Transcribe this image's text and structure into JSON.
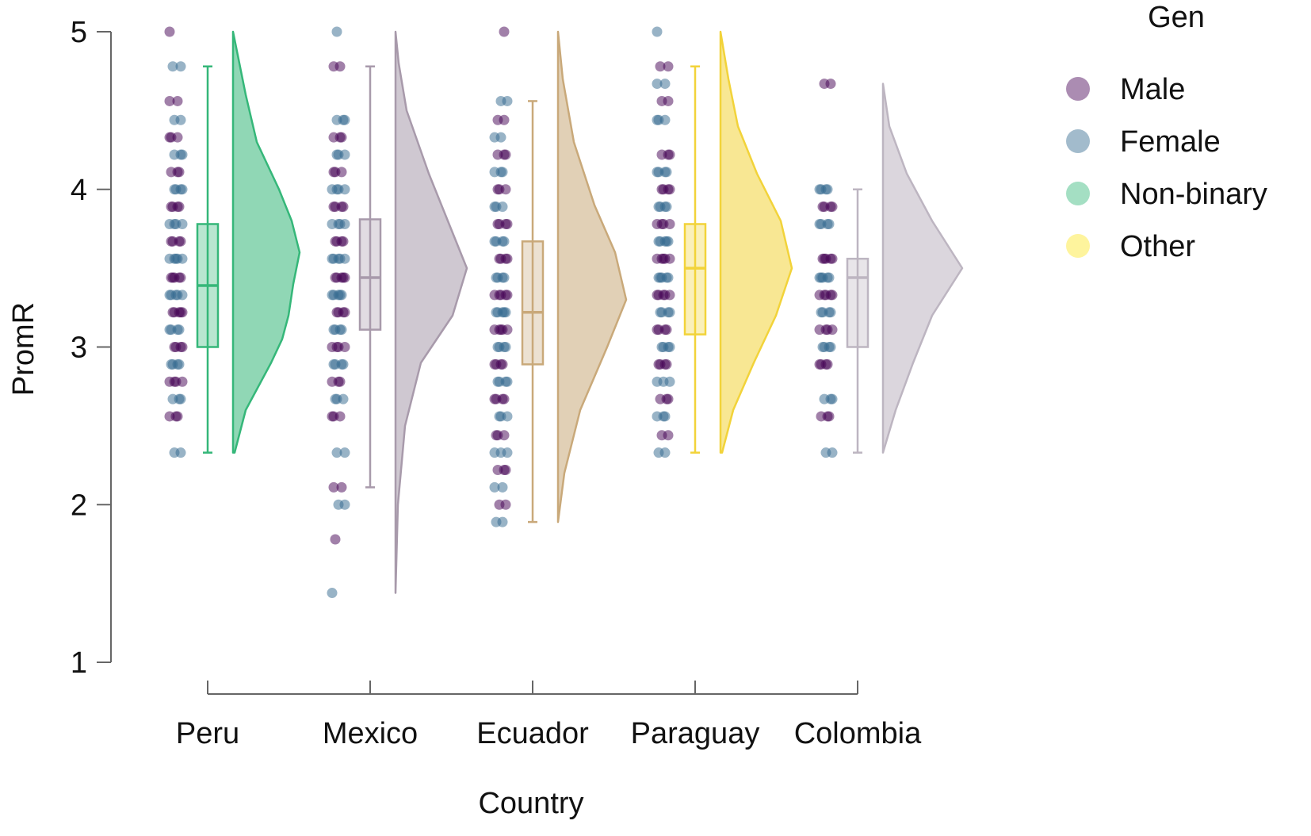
{
  "chart_data": {
    "type": "raincloud",
    "xlabel": "Country",
    "ylabel": "PromR",
    "ylim": [
      1,
      5
    ],
    "yticks": [
      1,
      2,
      3,
      4,
      5
    ],
    "grid": false,
    "legend": {
      "title": "Gen",
      "placement": "top-right",
      "entries": [
        {
          "name": "Male",
          "color": "#440154"
        },
        {
          "name": "Female",
          "color": "#31688e"
        },
        {
          "name": "Non-binary",
          "color": "#35b779"
        },
        {
          "name": "Other",
          "color": "#fde725"
        }
      ]
    },
    "groups": [
      {
        "name": "Peru",
        "color": "#35b779",
        "box": {
          "min": 2.33,
          "q1": 3.0,
          "median": 3.39,
          "q3": 3.78,
          "max": 4.78
        },
        "density": [
          [
            2.33,
            0.02
          ],
          [
            2.6,
            0.16
          ],
          [
            2.9,
            0.48
          ],
          [
            3.05,
            0.62
          ],
          [
            3.2,
            0.7
          ],
          [
            3.4,
            0.76
          ],
          [
            3.6,
            0.84
          ],
          [
            3.8,
            0.74
          ],
          [
            4.0,
            0.58
          ],
          [
            4.3,
            0.3
          ],
          [
            4.6,
            0.16
          ],
          [
            5.0,
            0.0
          ]
        ],
        "points": [
          5.0,
          4.78,
          4.56,
          4.44,
          4.33,
          4.22,
          4.11,
          4.0,
          3.89,
          3.78,
          3.67,
          3.56,
          3.44,
          3.33,
          3.22,
          3.11,
          3.0,
          2.89,
          2.78,
          2.67,
          2.56,
          2.33
        ]
      },
      {
        "name": "Mexico",
        "color": "#a89aab",
        "box": {
          "min": 2.11,
          "q1": 3.11,
          "median": 3.44,
          "q3": 3.81,
          "max": 4.78
        },
        "density": [
          [
            1.44,
            0.0
          ],
          [
            2.0,
            0.03
          ],
          [
            2.5,
            0.12
          ],
          [
            2.9,
            0.32
          ],
          [
            3.2,
            0.72
          ],
          [
            3.5,
            0.9
          ],
          [
            3.8,
            0.66
          ],
          [
            4.1,
            0.42
          ],
          [
            4.5,
            0.14
          ],
          [
            4.8,
            0.04
          ],
          [
            5.0,
            0.0
          ]
        ],
        "points": [
          5.0,
          4.78,
          4.44,
          4.33,
          4.22,
          4.11,
          4.0,
          3.89,
          3.78,
          3.67,
          3.56,
          3.44,
          3.33,
          3.22,
          3.11,
          3.0,
          2.89,
          2.78,
          2.67,
          2.56,
          2.33,
          2.11,
          2.0,
          1.78,
          1.44
        ]
      },
      {
        "name": "Ecuador",
        "color": "#c9a97a",
        "box": {
          "min": 1.89,
          "q1": 2.89,
          "median": 3.22,
          "q3": 3.67,
          "max": 4.56
        },
        "density": [
          [
            1.89,
            0.0
          ],
          [
            2.2,
            0.08
          ],
          [
            2.6,
            0.28
          ],
          [
            3.0,
            0.62
          ],
          [
            3.3,
            0.86
          ],
          [
            3.6,
            0.72
          ],
          [
            3.9,
            0.46
          ],
          [
            4.3,
            0.2
          ],
          [
            4.7,
            0.06
          ],
          [
            5.0,
            0.0
          ]
        ],
        "points": [
          5.0,
          4.56,
          4.44,
          4.33,
          4.22,
          4.11,
          4.0,
          3.89,
          3.78,
          3.67,
          3.56,
          3.44,
          3.33,
          3.22,
          3.11,
          3.0,
          2.89,
          2.78,
          2.67,
          2.56,
          2.44,
          2.33,
          2.22,
          2.11,
          2.0,
          1.89
        ]
      },
      {
        "name": "Paraguay",
        "color": "#f2d33a",
        "box": {
          "min": 2.33,
          "q1": 3.08,
          "median": 3.5,
          "q3": 3.78,
          "max": 4.78
        },
        "density": [
          [
            2.33,
            0.02
          ],
          [
            2.6,
            0.16
          ],
          [
            2.9,
            0.42
          ],
          [
            3.2,
            0.7
          ],
          [
            3.5,
            0.9
          ],
          [
            3.8,
            0.76
          ],
          [
            4.1,
            0.46
          ],
          [
            4.4,
            0.22
          ],
          [
            4.7,
            0.1
          ],
          [
            5.0,
            0.0
          ]
        ],
        "points": [
          5.0,
          4.78,
          4.67,
          4.56,
          4.44,
          4.22,
          4.11,
          4.0,
          3.89,
          3.78,
          3.67,
          3.56,
          3.44,
          3.33,
          3.22,
          3.11,
          3.0,
          2.89,
          2.78,
          2.67,
          2.56,
          2.44,
          2.33
        ]
      },
      {
        "name": "Colombia",
        "color": "#bdb5c1",
        "box": {
          "min": 2.33,
          "q1": 3.0,
          "median": 3.44,
          "q3": 3.56,
          "max": 4.0
        },
        "density": [
          [
            2.33,
            0.0
          ],
          [
            2.6,
            0.16
          ],
          [
            2.9,
            0.38
          ],
          [
            3.2,
            0.62
          ],
          [
            3.5,
            1.0
          ],
          [
            3.8,
            0.62
          ],
          [
            4.1,
            0.3
          ],
          [
            4.4,
            0.08
          ],
          [
            4.67,
            0.0
          ]
        ],
        "points": [
          4.67,
          4.0,
          3.89,
          3.78,
          3.56,
          3.44,
          3.33,
          3.22,
          3.11,
          3.0,
          2.89,
          2.67,
          2.56,
          2.33
        ]
      }
    ]
  }
}
